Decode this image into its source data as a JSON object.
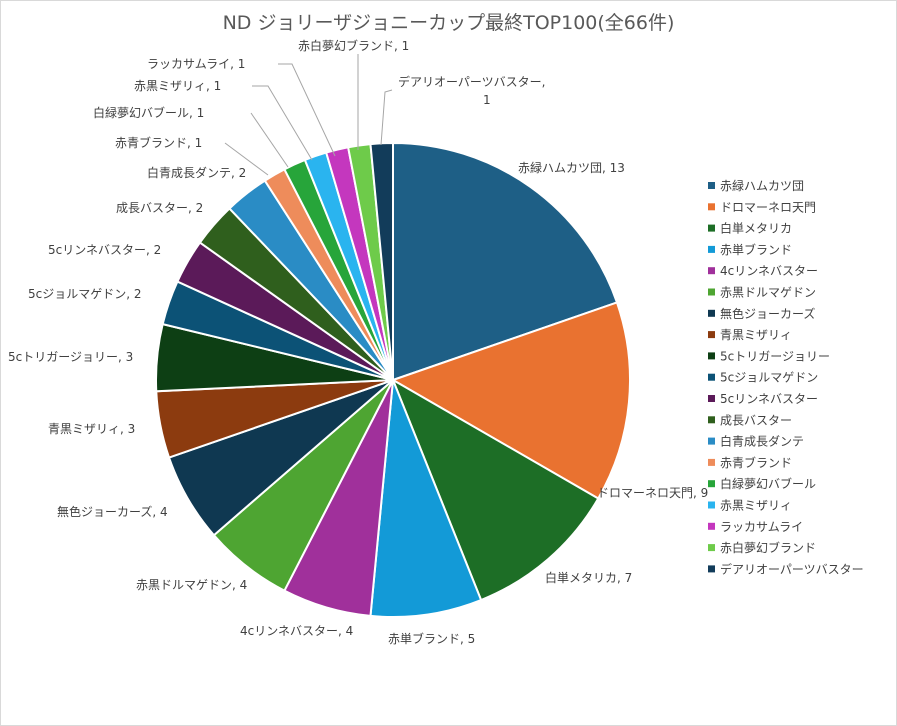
{
  "chart_data": {
    "type": "pie",
    "title": "ND ジョリーザジョニーカップ最終TOP100(全66件)",
    "slices": [
      {
        "name": "赤緑ハムカツ団",
        "value": 13,
        "color": "#1e5f86"
      },
      {
        "name": "ドロマーネロ天門",
        "value": 9,
        "color": "#e97230"
      },
      {
        "name": "白単メタリカ",
        "value": 7,
        "color": "#1d6e26"
      },
      {
        "name": "赤単ブランド",
        "value": 5,
        "color": "#139ad7"
      },
      {
        "name": "4cリンネバスター",
        "value": 4,
        "color": "#a0309b"
      },
      {
        "name": "赤黒ドルマゲドン",
        "value": 4,
        "color": "#4ea532"
      },
      {
        "name": "無色ジョーカーズ",
        "value": 4,
        "color": "#0f3851"
      },
      {
        "name": "青黒ミザリィ",
        "value": 3,
        "color": "#8c3b0f"
      },
      {
        "name": "5cトリガージョリー",
        "value": 3,
        "color": "#0d3f14"
      },
      {
        "name": "5cジョルマゲドン",
        "value": 2,
        "color": "#0c5276"
      },
      {
        "name": "5cリンネバスター",
        "value": 2,
        "color": "#5b1a59"
      },
      {
        "name": "成長バスター",
        "value": 2,
        "color": "#2f5f1d"
      },
      {
        "name": "白青成長ダンテ",
        "value": 2,
        "color": "#2a8cc5"
      },
      {
        "name": "赤青ブランド",
        "value": 1,
        "color": "#ee8c5b"
      },
      {
        "name": "白緑夢幻バブール",
        "value": 1,
        "color": "#27a53a"
      },
      {
        "name": "赤黒ミザリィ",
        "value": 1,
        "color": "#2ab4ef"
      },
      {
        "name": "ラッカサムライ",
        "value": 1,
        "color": "#c437be"
      },
      {
        "name": "赤白夢幻ブランド",
        "value": 1,
        "color": "#6ecb4a"
      },
      {
        "name": "デアリオーパーツバスター",
        "value": 1,
        "color": "#123c5a"
      }
    ],
    "data_labels": [
      "赤緑ハムカツ団, 13",
      "ドロマーネロ天門, 9",
      "白単メタリカ, 7",
      "赤単ブランド, 5",
      "4cリンネバスター, 4",
      "赤黒ドルマゲドン, 4",
      "無色ジョーカーズ, 4",
      "青黒ミザリィ, 3",
      "5cトリガージョリー, 3",
      "5cジョルマゲドン, 2",
      "5cリンネバスター, 2",
      "成長バスター, 2",
      "白青成長ダンテ, 2",
      "赤青ブランド, 1",
      "白緑夢幻バブール, 1",
      "赤黒ミザリィ, 1",
      "ラッカサムライ, 1",
      "赤白夢幻ブランド, 1",
      "デアリオーパーツバスター,|1"
    ],
    "legend_position": "right"
  }
}
